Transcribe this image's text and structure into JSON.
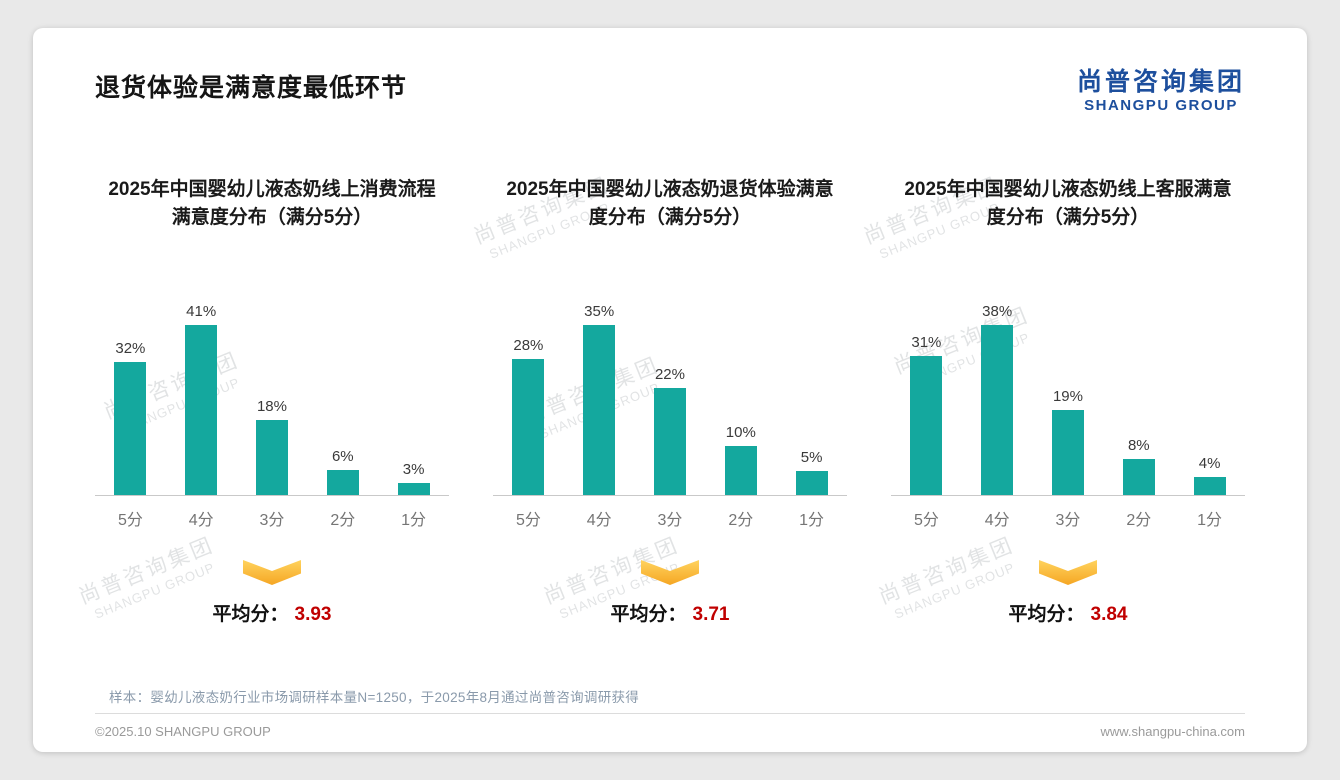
{
  "page": {
    "title": "退货体验是满意度最低环节",
    "logo": {
      "cn": "尚普咨询集团",
      "en": "SHANGPU GROUP"
    },
    "avg_label": "平均分：",
    "footer_note": "样本：婴幼儿液态奶行业市场调研样本量N=1250，于2025年8月通过尚普咨询调研获得",
    "copyright": "©2025.10 SHANGPU GROUP",
    "website": "www.shangpu-china.com"
  },
  "colors": {
    "bar": "#14a89e",
    "average_value": "#c00000",
    "arrow_top": "#ffd35e",
    "arrow_bottom": "#f5a623",
    "logo_blue": "#1d4f9d"
  },
  "chart_data": [
    {
      "type": "bar",
      "title": "2025年中国婴幼儿液态奶线上消费流程满意度分布（满分5分）",
      "categories": [
        "5分",
        "4分",
        "3分",
        "2分",
        "1分"
      ],
      "values": [
        32,
        41,
        18,
        6,
        3
      ],
      "unit": "%",
      "average": "3.93",
      "ylim": [
        0,
        45
      ],
      "grid": false,
      "legend": false
    },
    {
      "type": "bar",
      "title": "2025年中国婴幼儿液态奶退货体验满意度分布（满分5分）",
      "categories": [
        "5分",
        "4分",
        "3分",
        "2分",
        "1分"
      ],
      "values": [
        28,
        35,
        22,
        10,
        5
      ],
      "unit": "%",
      "average": "3.71",
      "ylim": [
        0,
        40
      ],
      "grid": false,
      "legend": false
    },
    {
      "type": "bar",
      "title": "2025年中国婴幼儿液态奶线上客服满意度分布（满分5分）",
      "categories": [
        "5分",
        "4分",
        "3分",
        "2分",
        "1分"
      ],
      "values": [
        31,
        38,
        19,
        8,
        4
      ],
      "unit": "%",
      "average": "3.84",
      "ylim": [
        0,
        42
      ],
      "grid": false,
      "legend": false
    }
  ]
}
